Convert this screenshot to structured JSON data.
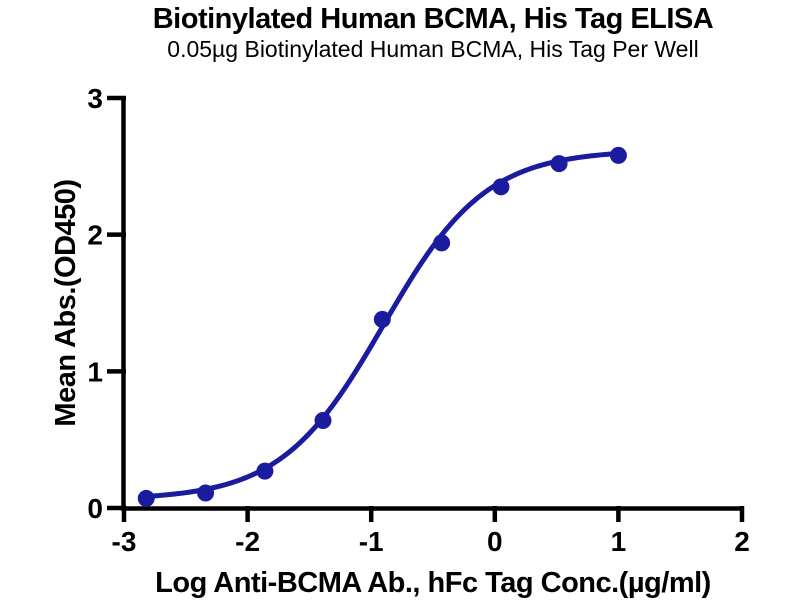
{
  "page": {
    "background_color": "#ffffff",
    "axis_color": "#000000",
    "series_color": "#1b1ba0"
  },
  "chart_data": {
    "type": "scatter",
    "title": "Biotinylated Human BCMA, His Tag ELISA",
    "subtitle": "0.05µg Biotinylated Human BCMA, His Tag Per Well",
    "xlabel": "Log Anti-BCMA Ab., hFc Tag Conc.(µg/ml)",
    "ylabel": "Mean Abs.(OD450)",
    "xlim": [
      -3,
      2
    ],
    "ylim": [
      0,
      3
    ],
    "x_ticks": [
      "-3",
      "-2",
      "-1",
      "0",
      "1",
      "2"
    ],
    "x_tick_values": [
      -3,
      -2,
      -1,
      0,
      1,
      2
    ],
    "y_ticks": [
      "0",
      "1",
      "2",
      "3"
    ],
    "y_tick_values": [
      0,
      1,
      2,
      3
    ],
    "grid": false,
    "legend_position": "none",
    "series": [
      {
        "name": "Anti-BCMA Ab., hFc Tag",
        "marker": "circle",
        "color": "#1b1ba0",
        "x": [
          -2.82,
          -2.34,
          -1.86,
          -1.39,
          -0.91,
          -0.43,
          0.05,
          0.52,
          1.0
        ],
        "y": [
          0.07,
          0.11,
          0.27,
          0.64,
          1.38,
          1.94,
          2.35,
          2.52,
          2.58
        ]
      }
    ],
    "fit_curve": {
      "model": "4PL",
      "bottom": 0.06,
      "top": 2.62,
      "log_ec50": -0.9,
      "hill": 1.05,
      "x_start": -2.82,
      "x_end": 1.0
    }
  }
}
